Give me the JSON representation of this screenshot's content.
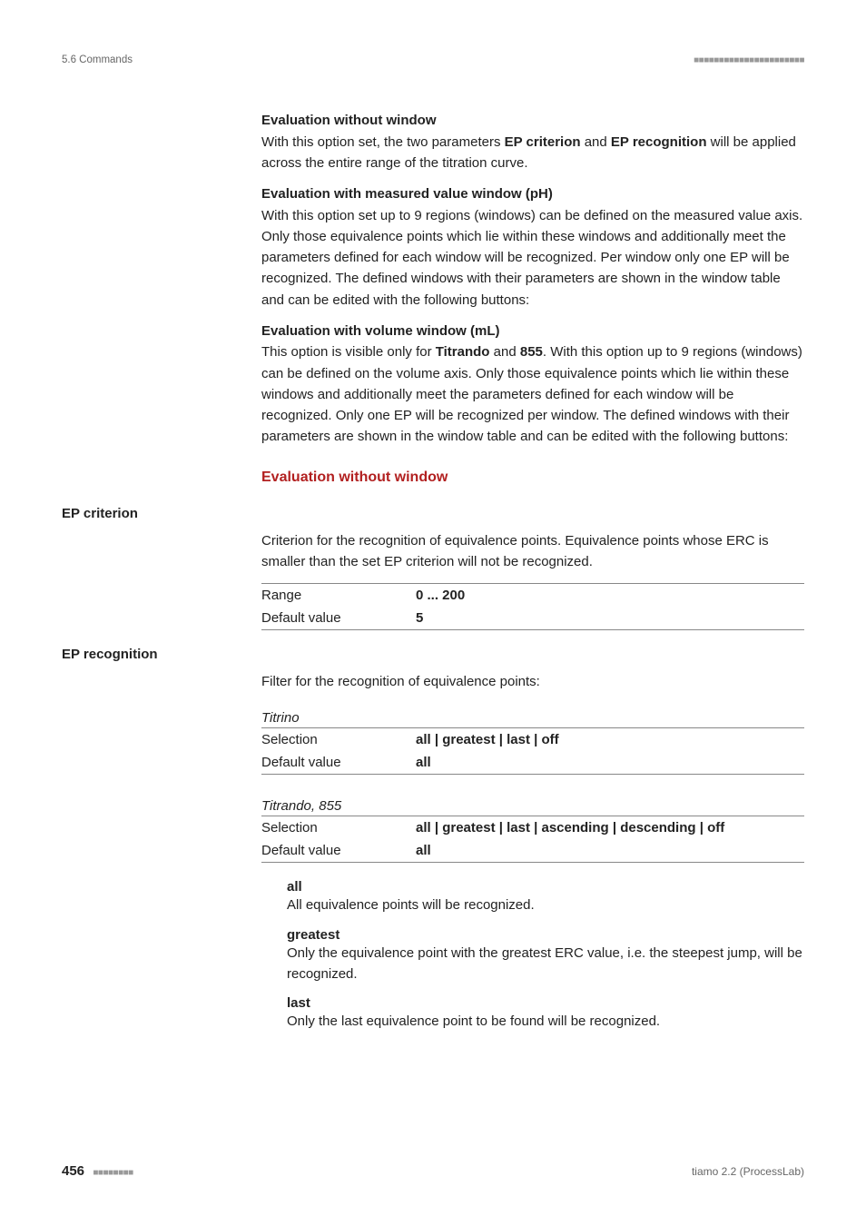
{
  "header": {
    "left": "5.6 Commands",
    "dots": "■■■■■■■■■■■■■■■■■■■■■■"
  },
  "blocks": {
    "eval_no_window": {
      "title": "Evaluation without window",
      "text_pre": "With this option set, the two parameters ",
      "b1": "EP criterion",
      "mid": " and ",
      "b2": "EP recognition",
      "text_post": " will be applied across the entire range of the titration curve."
    },
    "eval_measured": {
      "title": "Evaluation with measured value window (pH)",
      "text": "With this option set up to 9 regions (windows) can be defined on the measured value axis. Only those equivalence points which lie within these windows and additionally meet the parameters defined for each window will be recognized. Per window only one EP will be recognized. The defined windows with their parameters are shown in the window table and can be edited with the following buttons:"
    },
    "eval_volume": {
      "title": "Evaluation with volume window (mL)",
      "pre": "This option is visible only for ",
      "b1": "Titrando",
      "mid": " and ",
      "b2": "855",
      "post": ". With this option up to 9 regions (windows) can be defined on the volume axis. Only those equivalence points which lie within these windows and additionally meet the parameters defined for each window will be recognized. Only one EP will be recognized per window. The defined windows with their parameters are shown in the window table and can be edited with the following buttons:"
    }
  },
  "section_red": "Evaluation without window",
  "ep_criterion": {
    "label": "EP criterion",
    "desc": "Criterion for the recognition of equivalence points. Equivalence points whose ERC is smaller than the set EP criterion will not be recognized.",
    "rows": {
      "range_label": "Range",
      "range_value": "0 ... 200",
      "default_label": "Default value",
      "default_value": "5"
    }
  },
  "ep_recognition": {
    "label": "EP recognition",
    "desc": "Filter for the recognition of equivalence points:",
    "titrino": {
      "heading": "Titrino",
      "sel_label": "Selection",
      "sel_value": "all | greatest | last | off",
      "def_label": "Default value",
      "def_value": "all"
    },
    "titrando": {
      "heading": "Titrando, 855",
      "sel_label": "Selection",
      "sel_value": "all | greatest | last | ascending | descending | off",
      "def_label": "Default value",
      "def_value": "all"
    },
    "options": {
      "all_t": "all",
      "all_d": "All equivalence points will be recognized.",
      "greatest_t": "greatest",
      "greatest_d": "Only the equivalence point with the greatest ERC value, i.e. the steepest jump, will be recognized.",
      "last_t": "last",
      "last_d": "Only the last equivalence point to be found will be recognized."
    }
  },
  "footer": {
    "page": "456",
    "dots": "■■■■■■■■",
    "right": "tiamo 2.2 (ProcessLab)"
  }
}
